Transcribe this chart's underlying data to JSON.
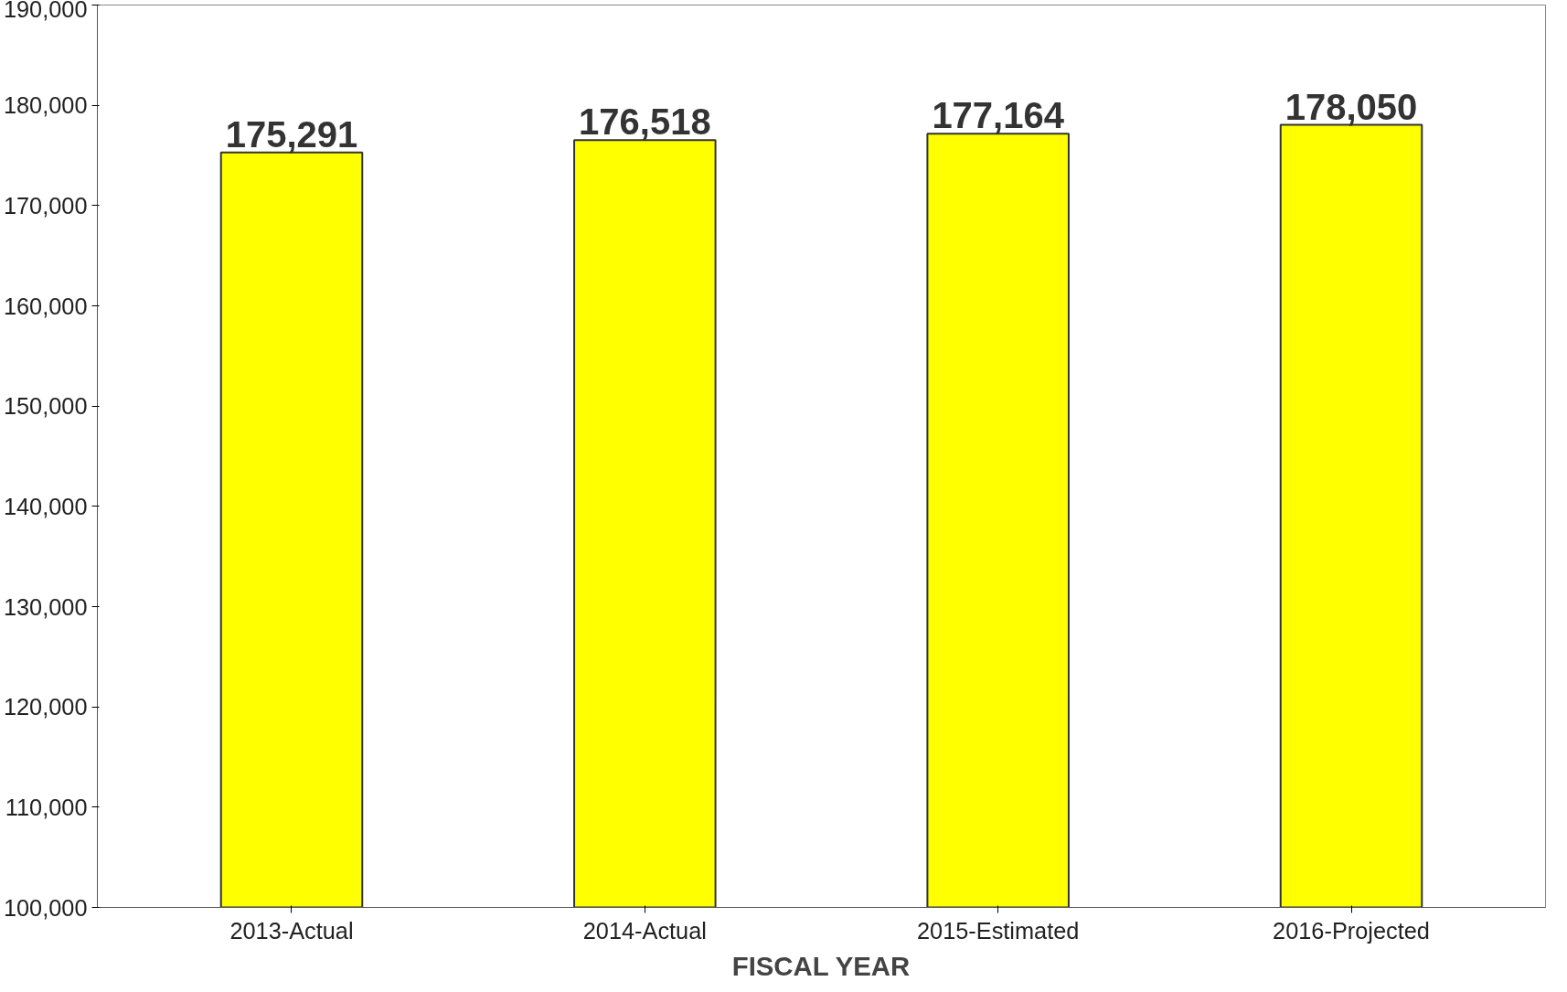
{
  "chart_data": {
    "type": "bar",
    "xlabel": "FISCAL YEAR",
    "categories": [
      "2013-Actual",
      "2014-Actual",
      "2015-Estimated",
      "2016-Projected"
    ],
    "values": [
      175291,
      176518,
      177164,
      178050
    ],
    "color": "#ffff00",
    "ylim": [
      100000,
      190000
    ],
    "yticks": [
      {
        "value": 100000,
        "label": "100,000"
      },
      {
        "value": 110000,
        "label": "110,000"
      },
      {
        "value": 120000,
        "label": "120,000"
      },
      {
        "value": 130000,
        "label": "130,000"
      },
      {
        "value": 140000,
        "label": "140,000"
      },
      {
        "value": 150000,
        "label": "150,000"
      },
      {
        "value": 160000,
        "label": "160,000"
      },
      {
        "value": 170000,
        "label": "170,000"
      },
      {
        "value": 180000,
        "label": "180,000"
      },
      {
        "value": 190000,
        "label": "190,000"
      }
    ],
    "value_labels": [
      "175,291",
      "176,518",
      "177,164",
      "178,050"
    ],
    "grid": false
  }
}
